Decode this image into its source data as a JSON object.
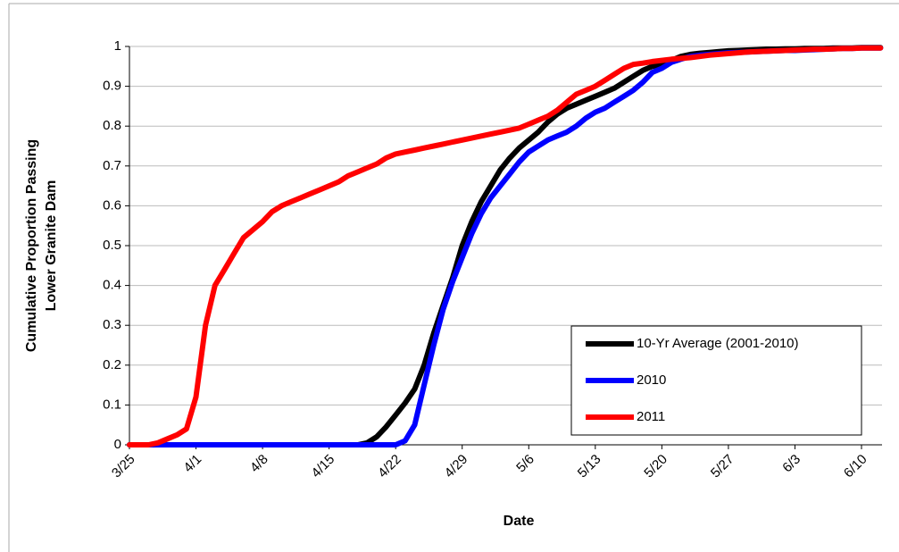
{
  "chart_data": {
    "type": "line",
    "y_label": [
      "Cumulative Proportion Passing",
      "Lower Granite Dam"
    ],
    "x_label": "Date",
    "categories": [
      "3/25",
      null,
      null,
      null,
      null,
      null,
      null,
      "4/1",
      null,
      null,
      null,
      null,
      null,
      null,
      "4/8",
      null,
      null,
      null,
      null,
      null,
      null,
      "4/15",
      null,
      null,
      null,
      null,
      null,
      null,
      "4/22",
      null,
      null,
      null,
      null,
      null,
      null,
      "4/29",
      null,
      null,
      null,
      null,
      null,
      null,
      "5/6",
      null,
      null,
      null,
      null,
      null,
      null,
      "5/13",
      null,
      null,
      null,
      null,
      null,
      null,
      "5/20",
      null,
      null,
      null,
      null,
      null,
      null,
      "5/27",
      null,
      null,
      null,
      null,
      null,
      null,
      "6/3",
      null,
      null,
      null,
      null,
      null,
      null,
      "6/10",
      null,
      null
    ],
    "series": [
      {
        "name": "10-Yr Average (2001-2010)",
        "color": "#000000",
        "values": [
          0,
          0,
          0,
          0,
          0,
          0,
          0,
          0,
          0,
          0,
          0,
          0,
          0,
          0,
          0,
          0,
          0,
          0,
          0,
          0,
          0,
          0,
          0,
          0,
          0,
          0.005,
          0.02,
          0.045,
          0.075,
          0.105,
          0.14,
          0.2,
          0.28,
          0.35,
          0.42,
          0.5,
          0.56,
          0.61,
          0.65,
          0.69,
          0.72,
          0.745,
          0.765,
          0.785,
          0.81,
          0.83,
          0.845,
          0.855,
          0.865,
          0.875,
          0.885,
          0.895,
          0.91,
          0.925,
          0.94,
          0.95,
          0.955,
          0.965,
          0.975,
          0.98,
          0.983,
          0.985,
          0.987,
          0.989,
          0.99,
          0.991,
          0.992,
          0.993,
          0.993,
          0.994,
          0.994,
          0.995,
          0.995,
          0.995,
          0.996,
          0.996,
          0.996,
          0.997,
          0.997,
          0.997
        ]
      },
      {
        "name": "2010",
        "color": "#0000ff",
        "values": [
          0,
          0,
          0,
          0,
          0,
          0,
          0,
          0,
          0,
          0,
          0,
          0,
          0,
          0,
          0,
          0,
          0,
          0,
          0,
          0,
          0,
          0,
          0,
          0,
          0,
          0,
          0,
          0,
          0,
          0.01,
          0.05,
          0.15,
          0.25,
          0.34,
          0.41,
          0.47,
          0.53,
          0.58,
          0.62,
          0.65,
          0.68,
          0.71,
          0.735,
          0.75,
          0.765,
          0.775,
          0.785,
          0.8,
          0.82,
          0.835,
          0.845,
          0.86,
          0.875,
          0.89,
          0.91,
          0.935,
          0.945,
          0.96,
          0.968,
          0.975,
          0.978,
          0.98,
          0.982,
          0.984,
          0.985,
          0.986,
          0.987,
          0.988,
          0.989,
          0.99,
          0.99,
          0.991,
          0.992,
          0.993,
          0.994,
          0.995,
          0.995,
          0.996,
          0.996,
          0.996
        ]
      },
      {
        "name": "2011",
        "color": "#ff0000",
        "values": [
          0,
          0,
          0,
          0.005,
          0.015,
          0.025,
          0.04,
          0.12,
          0.3,
          0.4,
          0.44,
          0.48,
          0.52,
          0.54,
          0.56,
          0.585,
          0.6,
          0.61,
          0.62,
          0.63,
          0.64,
          0.65,
          0.66,
          0.675,
          0.685,
          0.695,
          0.705,
          0.72,
          0.73,
          0.735,
          0.74,
          0.745,
          0.75,
          0.755,
          0.76,
          0.765,
          0.77,
          0.775,
          0.78,
          0.785,
          0.79,
          0.795,
          0.805,
          0.815,
          0.825,
          0.84,
          0.86,
          0.88,
          0.89,
          0.9,
          0.915,
          0.93,
          0.945,
          0.955,
          0.958,
          0.962,
          0.965,
          0.968,
          0.97,
          0.972,
          0.975,
          0.978,
          0.98,
          0.982,
          0.984,
          0.986,
          0.987,
          0.988,
          0.989,
          0.99,
          0.991,
          0.992,
          0.993,
          0.993,
          0.994,
          0.995,
          0.995,
          0.996,
          0.996,
          0.996
        ]
      }
    ],
    "ylim": [
      0,
      1
    ],
    "yticks": [
      0,
      0.1,
      0.2,
      0.3,
      0.4,
      0.5,
      0.6,
      0.7,
      0.8,
      0.9,
      1
    ],
    "grid": true,
    "legend": "lower-right"
  }
}
